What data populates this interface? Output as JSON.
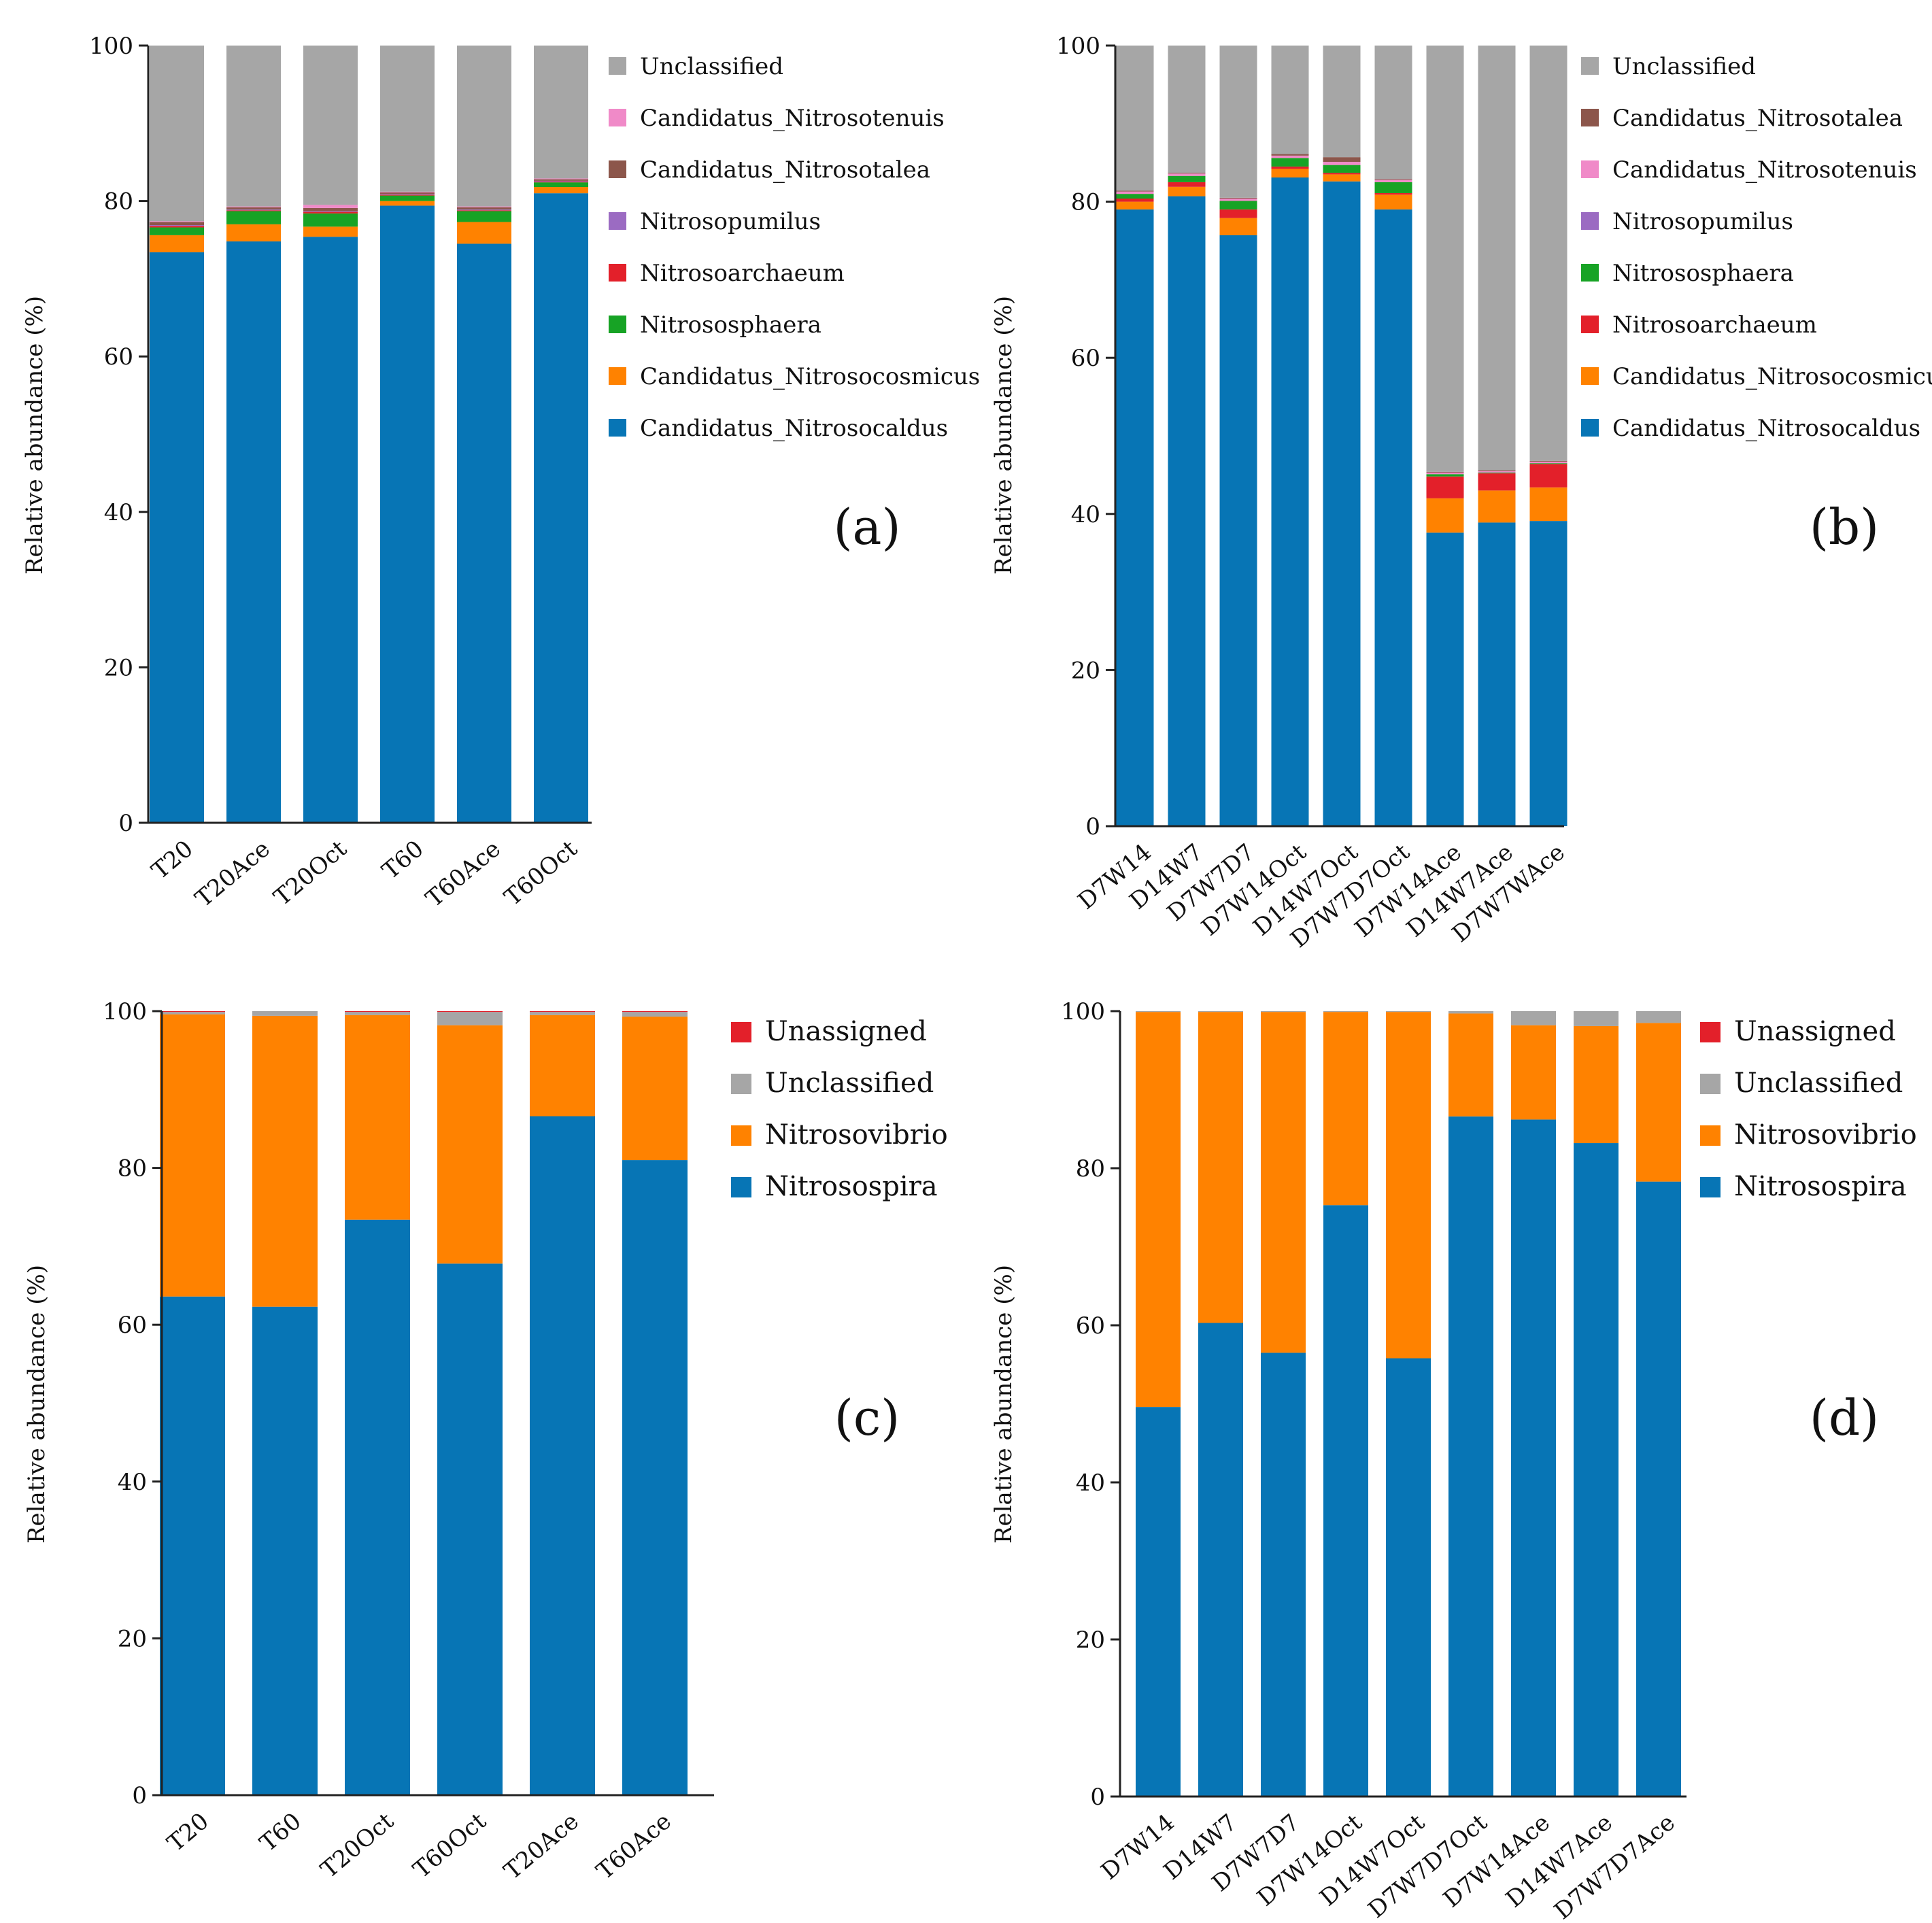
{
  "colors": {
    "Unclassified": "#a6a6a6",
    "Candidatus_Nitrosotenuis": "#f08ac8",
    "Candidatus_Nitrosotalea": "#8c564b",
    "Nitrosopumilus": "#9b6bc2",
    "Nitrosoarchaeum": "#e3202a",
    "Nitrososphaera": "#17a325",
    "Candidatus_Nitrosocosmicus": "#ff8200",
    "Candidatus_Nitrosocaldus": "#0775b5",
    "Unassigned": "#e3202a",
    "Nitrosovibrio": "#ff8200",
    "Nitrosospira": "#0775b5"
  },
  "chart_data": [
    {
      "panel": "(a)",
      "type": "bar",
      "stacked": true,
      "ylabel": "Relative abundance (%)",
      "ylim": [
        0,
        100
      ],
      "yticks": [
        "0",
        "20",
        "40",
        "60",
        "80",
        "100"
      ],
      "categories": [
        "T20",
        "T20Ace",
        "T20Oct",
        "T60",
        "T60Ace",
        "T60Oct"
      ],
      "legend": [
        "Unclassified",
        "Candidatus_Nitrosotenuis",
        "Candidatus_Nitrosotalea",
        "Nitrosopumilus",
        "Nitrosoarchaeum",
        "Nitrososphaera",
        "Candidatus_Nitrosocosmicus",
        "Candidatus_Nitrosocaldus"
      ],
      "series": [
        {
          "name": "Candidatus_Nitrosocaldus",
          "values": [
            73.4,
            74.8,
            75.4,
            79.4,
            74.5,
            81.0
          ]
        },
        {
          "name": "Candidatus_Nitrosocosmicus",
          "values": [
            2.2,
            2.2,
            1.3,
            0.6,
            2.8,
            0.8
          ]
        },
        {
          "name": "Nitrososphaera",
          "values": [
            1.0,
            1.7,
            1.7,
            0.7,
            1.4,
            0.6
          ]
        },
        {
          "name": "Nitrosoarchaeum",
          "values": [
            0.2,
            0.1,
            0.2,
            0.1,
            0.1,
            0.1
          ]
        },
        {
          "name": "Nitrosopumilus",
          "values": [
            0.1,
            0.1,
            0.1,
            0.1,
            0.1,
            0.1
          ]
        },
        {
          "name": "Candidatus_Nitrosotalea",
          "values": [
            0.4,
            0.3,
            0.4,
            0.2,
            0.3,
            0.2
          ]
        },
        {
          "name": "Candidatus_Nitrosotenuis",
          "values": [
            0.1,
            0.1,
            0.4,
            0.1,
            0.1,
            0.1
          ]
        },
        {
          "name": "Unclassified",
          "values": [
            22.6,
            20.7,
            20.5,
            18.8,
            20.7,
            17.1
          ]
        }
      ]
    },
    {
      "panel": "(b)",
      "type": "bar",
      "stacked": true,
      "ylabel": "Relative abundance (%)",
      "ylim": [
        0,
        100
      ],
      "yticks": [
        "0",
        "20",
        "40",
        "60",
        "80",
        "100"
      ],
      "categories": [
        "D7W14",
        "D14W7",
        "D7W7D7",
        "D7W14Oct",
        "D14W7Oct",
        "D7W7D7Oct",
        "D7W14Ace",
        "D14W7Ace",
        "D7W7WAce"
      ],
      "legend": [
        "Unclassified",
        "Candidatus_Nitrosotalea",
        "Candidatus_Nitrosotenuis",
        "Nitrosopumilus",
        "Nitrososphaera",
        "Nitrosoarchaeum",
        "Candidatus_Nitrosocosmicus",
        "Candidatus_Nitrosocaldus"
      ],
      "series": [
        {
          "name": "Candidatus_Nitrosocaldus",
          "values": [
            79.0,
            80.7,
            75.7,
            83.1,
            82.6,
            79.0,
            37.6,
            38.9,
            39.1
          ]
        },
        {
          "name": "Candidatus_Nitrosocosmicus",
          "values": [
            1.0,
            1.2,
            2.2,
            1.1,
            0.9,
            1.9,
            4.4,
            4.1,
            4.3
          ]
        },
        {
          "name": "Nitrosoarchaeum",
          "values": [
            0.4,
            0.6,
            1.1,
            0.3,
            0.2,
            0.2,
            2.8,
            2.2,
            3.0
          ]
        },
        {
          "name": "Nitrosopumilus",
          "values": [
            0.0,
            0.0,
            0.0,
            0.0,
            0.0,
            0.0,
            0.0,
            0.0,
            0.0
          ]
        },
        {
          "name": "Nitrososphaera",
          "values": [
            0.6,
            0.8,
            1.1,
            1.1,
            1.0,
            1.4,
            0.3,
            0.1,
            0.1
          ]
        },
        {
          "name": "Candidatus_Nitrosotenuis",
          "values": [
            0.3,
            0.3,
            0.3,
            0.3,
            0.4,
            0.3,
            0.2,
            0.2,
            0.2
          ]
        },
        {
          "name": "Candidatus_Nitrosotalea",
          "values": [
            0.1,
            0.1,
            0.1,
            0.2,
            0.6,
            0.1,
            0.1,
            0.1,
            0.1
          ]
        },
        {
          "name": "Unclassified",
          "values": [
            18.6,
            16.3,
            19.5,
            13.9,
            14.3,
            17.1,
            54.6,
            54.4,
            53.2
          ]
        }
      ]
    },
    {
      "panel": "(c)",
      "type": "bar",
      "stacked": true,
      "ylabel": "Relative abundance (%)",
      "ylim": [
        0,
        100
      ],
      "yticks": [
        "0",
        "20",
        "40",
        "60",
        "80",
        "100"
      ],
      "categories": [
        "T20",
        "T60",
        "T20Oct",
        "T60Oct",
        "T20Ace",
        "T60Ace"
      ],
      "legend": [
        "Unassigned",
        "Unclassified",
        "Nitrosovibrio",
        "Nitrosospira"
      ],
      "series": [
        {
          "name": "Nitrosospira",
          "values": [
            63.6,
            62.3,
            73.4,
            67.8,
            86.6,
            81.0
          ]
        },
        {
          "name": "Nitrosovibrio",
          "values": [
            36.0,
            37.1,
            26.1,
            30.4,
            12.9,
            18.3
          ]
        },
        {
          "name": "Unclassified",
          "values": [
            0.3,
            0.6,
            0.4,
            1.7,
            0.4,
            0.6
          ]
        },
        {
          "name": "Unassigned",
          "values": [
            0.1,
            0.0,
            0.1,
            0.1,
            0.1,
            0.1
          ]
        }
      ]
    },
    {
      "panel": "(d)",
      "type": "bar",
      "stacked": true,
      "ylabel": "Relative abundance (%)",
      "ylim": [
        0,
        100
      ],
      "yticks": [
        "0",
        "20",
        "40",
        "60",
        "80",
        "100"
      ],
      "categories": [
        "D7W14",
        "D14W7",
        "D7W7D7",
        "D7W14Oct",
        "D14W7Oct",
        "D7W7D7Oct",
        "D7W14Ace",
        "D14W7Ace",
        "D7W7D7Ace"
      ],
      "legend": [
        "Unassigned",
        "Unclassified",
        "Nitrosovibrio",
        "Nitrosospira"
      ],
      "series": [
        {
          "name": "Nitrosospira",
          "values": [
            49.6,
            60.3,
            56.5,
            75.3,
            55.8,
            86.6,
            86.2,
            83.2,
            78.3
          ]
        },
        {
          "name": "Nitrosovibrio",
          "values": [
            50.3,
            39.6,
            43.4,
            24.6,
            44.1,
            13.1,
            12.0,
            14.9,
            20.2
          ]
        },
        {
          "name": "Unclassified",
          "values": [
            0.1,
            0.1,
            0.1,
            0.1,
            0.1,
            0.3,
            1.8,
            1.9,
            1.5
          ]
        },
        {
          "name": "Unassigned",
          "values": [
            0.0,
            0.0,
            0.0,
            0.0,
            0.0,
            0.0,
            0.0,
            0.0,
            0.0
          ]
        }
      ]
    }
  ]
}
